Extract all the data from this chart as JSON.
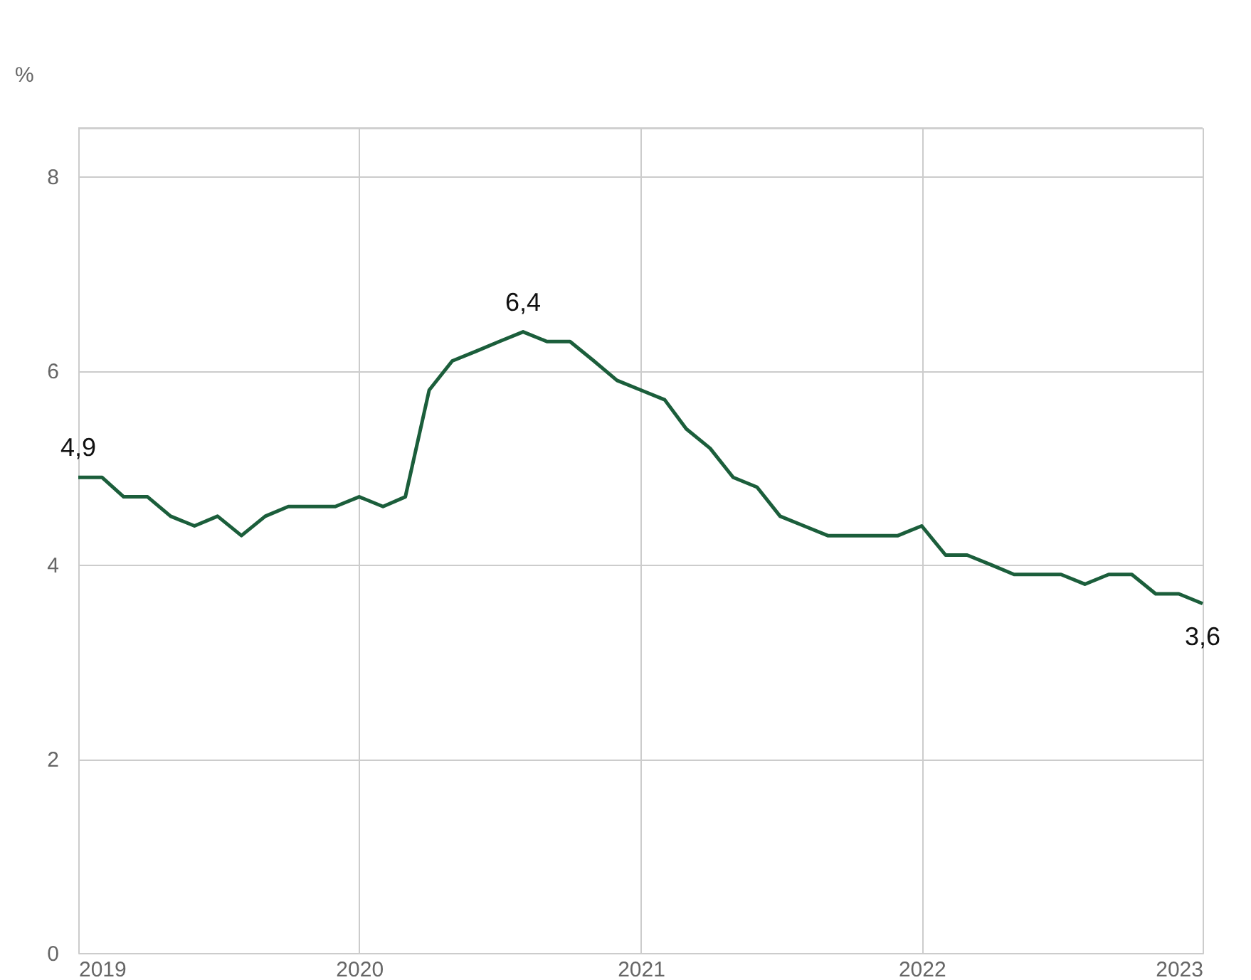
{
  "chart_data": {
    "type": "line",
    "ylabel": "%",
    "x": [
      "2019-01",
      "2019-02",
      "2019-03",
      "2019-04",
      "2019-05",
      "2019-06",
      "2019-07",
      "2019-08",
      "2019-09",
      "2019-10",
      "2019-11",
      "2019-12",
      "2020-01",
      "2020-02",
      "2020-03",
      "2020-04",
      "2020-05",
      "2020-06",
      "2020-07",
      "2020-08",
      "2020-09",
      "2020-10",
      "2020-11",
      "2020-12",
      "2021-01",
      "2021-02",
      "2021-03",
      "2021-04",
      "2021-05",
      "2021-06",
      "2021-07",
      "2021-08",
      "2021-09",
      "2021-10",
      "2021-11",
      "2021-12",
      "2022-01",
      "2022-02",
      "2022-03",
      "2022-04",
      "2022-05",
      "2022-06",
      "2022-07",
      "2022-08",
      "2022-09",
      "2022-10",
      "2022-11",
      "2022-12",
      "2023-01"
    ],
    "series": [
      {
        "color": "#1b5e3b",
        "values": [
          4.9,
          4.9,
          4.7,
          4.7,
          4.5,
          4.4,
          4.5,
          4.3,
          4.5,
          4.6,
          4.6,
          4.6,
          4.7,
          4.6,
          4.7,
          5.8,
          6.1,
          6.2,
          6.3,
          6.4,
          6.3,
          6.3,
          6.1,
          5.9,
          5.8,
          5.7,
          5.4,
          5.2,
          4.9,
          4.8,
          4.5,
          4.4,
          4.3,
          4.3,
          4.3,
          4.3,
          4.4,
          4.1,
          4.1,
          4.0,
          3.9,
          3.9,
          3.9,
          3.8,
          3.9,
          3.9,
          3.7,
          3.7,
          3.6
        ],
        "value_labels": [
          "4,9",
          null,
          null,
          null,
          null,
          null,
          null,
          null,
          null,
          null,
          null,
          null,
          null,
          null,
          null,
          null,
          null,
          null,
          null,
          "6,4",
          null,
          null,
          null,
          null,
          null,
          null,
          null,
          null,
          null,
          null,
          null,
          null,
          null,
          null,
          null,
          null,
          null,
          null,
          null,
          null,
          null,
          null,
          null,
          null,
          null,
          null,
          null,
          null,
          "3,6"
        ]
      }
    ],
    "xlim": [
      "2019-01",
      "2023-01"
    ],
    "xticks": [
      {
        "value": "2019-01",
        "label": "2019"
      },
      {
        "value": "2020-01",
        "label": "2020"
      },
      {
        "value": "2021-01",
        "label": "2021"
      },
      {
        "value": "2022-01",
        "label": "2022"
      },
      {
        "value": "2023-01",
        "label": "2023"
      }
    ],
    "ylim": [
      0,
      8.5
    ],
    "yticks": [
      0,
      2,
      4,
      6,
      8
    ],
    "grid": true,
    "line_style": "solid",
    "marker": "none"
  }
}
